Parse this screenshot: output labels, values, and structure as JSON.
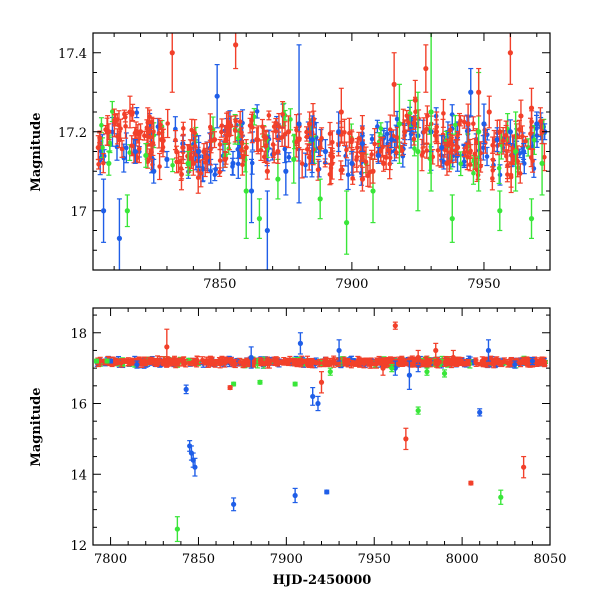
{
  "chart_data": [
    {
      "type": "scatter",
      "ylabel": "Magnitude",
      "xlabel": "",
      "xlim": [
        7802,
        7975
      ],
      "ylim": [
        17.45,
        16.85
      ],
      "y_inverted": true,
      "xticks": [
        7850,
        7900,
        7950
      ],
      "yticks": [
        17,
        17.2,
        17.4
      ],
      "grid": false,
      "colors": {
        "blue": "#1f5ee8",
        "green": "#39e639",
        "red": "#f2402a"
      },
      "series": [
        {
          "color": "blue",
          "points": [
            [
              7806,
              17.0,
              0.08
            ],
            [
              7812,
              16.93,
              0.1
            ],
            [
              7818,
              17.15,
              0.03
            ],
            [
              7825,
              17.1,
              0.03
            ],
            [
              7830,
              17.13,
              0.02
            ],
            [
              7836,
              17.17,
              0.02
            ],
            [
              7842,
              17.15,
              0.04
            ],
            [
              7849,
              17.29,
              0.08
            ],
            [
              7855,
              17.12,
              0.03
            ],
            [
              7862,
              17.05,
              0.08
            ],
            [
              7868,
              16.95,
              0.1
            ],
            [
              7875,
              17.1,
              0.06
            ],
            [
              7880,
              17.22,
              0.2
            ],
            [
              7885,
              17.18,
              0.06
            ],
            [
              7890,
              17.15,
              0.03
            ],
            [
              7895,
              17.2,
              0.05
            ],
            [
              7900,
              17.12,
              0.03
            ],
            [
              7904,
              17.17,
              0.02
            ],
            [
              7910,
              17.14,
              0.02
            ],
            [
              7915,
              17.18,
              0.02
            ],
            [
              7920,
              17.2,
              0.02
            ],
            [
              7925,
              17.19,
              0.04
            ],
            [
              7930,
              17.2,
              0.05
            ],
            [
              7934,
              17.16,
              0.03
            ],
            [
              7940,
              17.14,
              0.04
            ],
            [
              7945,
              17.3,
              0.06
            ],
            [
              7950,
              17.22,
              0.05
            ],
            [
              7955,
              17.18,
              0.03
            ],
            [
              7960,
              17.2,
              0.03
            ],
            [
              7965,
              17.15,
              0.02
            ],
            [
              7970,
              17.22,
              0.03
            ],
            [
              7973,
              17.2,
              0.02
            ]
          ]
        },
        {
          "color": "green",
          "points": [
            [
              7808,
              17.12,
              0.03
            ],
            [
              7815,
              17.0,
              0.04
            ],
            [
              7822,
              17.14,
              0.03
            ],
            [
              7838,
              17.12,
              0.03
            ],
            [
              7852,
              17.14,
              0.03
            ],
            [
              7860,
              17.05,
              0.12
            ],
            [
              7865,
              16.98,
              0.05
            ],
            [
              7872,
              17.08,
              0.05
            ],
            [
              7878,
              17.13,
              0.06
            ],
            [
              7888,
              17.03,
              0.05
            ],
            [
              7898,
              16.97,
              0.08
            ],
            [
              7908,
              17.05,
              0.08
            ],
            [
              7918,
              17.22,
              0.1
            ],
            [
              7925,
              17.15,
              0.15
            ],
            [
              7930,
              17.25,
              0.2
            ],
            [
              7938,
              16.98,
              0.06
            ],
            [
              7948,
              17.2,
              0.15
            ],
            [
              7956,
              17.0,
              0.05
            ],
            [
              7962,
              17.15,
              0.1
            ],
            [
              7968,
              16.98,
              0.05
            ],
            [
              7972,
              17.12,
              0.08
            ]
          ]
        },
        {
          "color": "red",
          "points": [
            [
              7804,
              17.16,
              0.03
            ],
            [
              7808,
              17.2,
              0.02
            ],
            [
              7812,
              17.18,
              0.02
            ],
            [
              7816,
              17.25,
              0.04
            ],
            [
              7820,
              17.2,
              0.02
            ],
            [
              7824,
              17.15,
              0.02
            ],
            [
              7828,
              17.18,
              0.03
            ],
            [
              7832,
              17.4,
              0.1
            ],
            [
              7836,
              17.16,
              0.03
            ],
            [
              7840,
              17.12,
              0.03
            ],
            [
              7844,
              17.15,
              0.02
            ],
            [
              7848,
              17.18,
              0.02
            ],
            [
              7852,
              17.13,
              0.02
            ],
            [
              7856,
              17.42,
              0.06
            ],
            [
              7860,
              17.16,
              0.02
            ],
            [
              7864,
              17.18,
              0.03
            ],
            [
              7868,
              17.1,
              0.02
            ],
            [
              7872,
              17.15,
              0.03
            ],
            [
              7876,
              17.2,
              0.04
            ],
            [
              7880,
              17.18,
              0.02
            ],
            [
              7884,
              17.22,
              0.03
            ],
            [
              7888,
              17.16,
              0.02
            ],
            [
              7892,
              17.14,
              0.02
            ],
            [
              7896,
              17.25,
              0.06
            ],
            [
              7900,
              17.18,
              0.02
            ],
            [
              7904,
              17.08,
              0.03
            ],
            [
              7908,
              17.1,
              0.03
            ],
            [
              7912,
              17.12,
              0.02
            ],
            [
              7916,
              17.32,
              0.08
            ],
            [
              7920,
              17.2,
              0.03
            ],
            [
              7924,
              17.28,
              0.05
            ],
            [
              7928,
              17.36,
              0.06
            ],
            [
              7932,
              17.2,
              0.03
            ],
            [
              7936,
              17.12,
              0.03
            ],
            [
              7940,
              17.16,
              0.02
            ],
            [
              7944,
              17.22,
              0.05
            ],
            [
              7948,
              17.3,
              0.06
            ],
            [
              7952,
              17.25,
              0.04
            ],
            [
              7956,
              17.2,
              0.03
            ],
            [
              7960,
              17.4,
              0.08
            ],
            [
              7964,
              17.24,
              0.04
            ],
            [
              7968,
              17.26,
              0.05
            ],
            [
              7972,
              17.2,
              0.03
            ]
          ]
        }
      ]
    },
    {
      "type": "scatter",
      "ylabel": "Magnitude",
      "xlabel": "HJD-2450000",
      "xlim": [
        7790,
        8050
      ],
      "ylim": [
        18.7,
        12
      ],
      "y_inverted": true,
      "xticks": [
        7800,
        7850,
        7900,
        7950,
        8000,
        8050
      ],
      "yticks": [
        12,
        14,
        16,
        18
      ],
      "grid": false,
      "colors": {
        "blue": "#1f5ee8",
        "green": "#39e639",
        "red": "#f2402a"
      },
      "series": [
        {
          "color": "blue",
          "points": [
            [
              7800,
              17.2,
              0.05
            ],
            [
              7815,
              17.1,
              0.1
            ],
            [
              7843,
              16.4,
              0.12
            ],
            [
              7845,
              14.8,
              0.15
            ],
            [
              7846,
              14.6,
              0.2
            ],
            [
              7847,
              14.4,
              0.2
            ],
            [
              7848,
              14.2,
              0.25
            ],
            [
              7870,
              13.15,
              0.18
            ],
            [
              7880,
              17.3,
              0.3
            ],
            [
              7905,
              13.4,
              0.2
            ],
            [
              7908,
              17.7,
              0.3
            ],
            [
              7915,
              16.2,
              0.25
            ],
            [
              7918,
              16.0,
              0.2
            ],
            [
              7923,
              13.5,
              0.05
            ],
            [
              7930,
              17.5,
              0.3
            ],
            [
              7962,
              17.0,
              0.2
            ],
            [
              7970,
              16.8,
              0.4
            ],
            [
              7975,
              17.1,
              0.2
            ],
            [
              8010,
              15.75,
              0.1
            ],
            [
              8015,
              17.5,
              0.3
            ],
            [
              8030,
              17.1,
              0.1
            ],
            [
              8040,
              17.2,
              0.1
            ]
          ]
        },
        {
          "color": "green",
          "points": [
            [
              7792,
              17.2,
              0.05
            ],
            [
              7798,
              17.2,
              0.05
            ],
            [
              7838,
              12.45,
              0.35
            ],
            [
              7870,
              16.55,
              0.05
            ],
            [
              7885,
              16.6,
              0.05
            ],
            [
              7905,
              16.55,
              0.05
            ],
            [
              7925,
              16.9,
              0.1
            ],
            [
              7960,
              17.0,
              0.1
            ],
            [
              7975,
              15.8,
              0.1
            ],
            [
              7980,
              16.9,
              0.1
            ],
            [
              7990,
              16.85,
              0.1
            ],
            [
              8022,
              13.35,
              0.2
            ]
          ]
        },
        {
          "color": "red",
          "points": [
            [
              7832,
              17.6,
              0.5
            ],
            [
              7868,
              16.45,
              0.05
            ],
            [
              7920,
              16.6,
              0.3
            ],
            [
              7955,
              17.0,
              0.2
            ],
            [
              7962,
              18.2,
              0.1
            ],
            [
              7968,
              15.0,
              0.3
            ],
            [
              7975,
              17.3,
              0.2
            ],
            [
              7985,
              17.5,
              0.2
            ],
            [
              7995,
              17.3,
              0.2
            ],
            [
              8005,
              13.75,
              0.05
            ],
            [
              8035,
              14.2,
              0.3
            ],
            [
              8045,
              17.2,
              0.05
            ]
          ]
        }
      ]
    }
  ]
}
